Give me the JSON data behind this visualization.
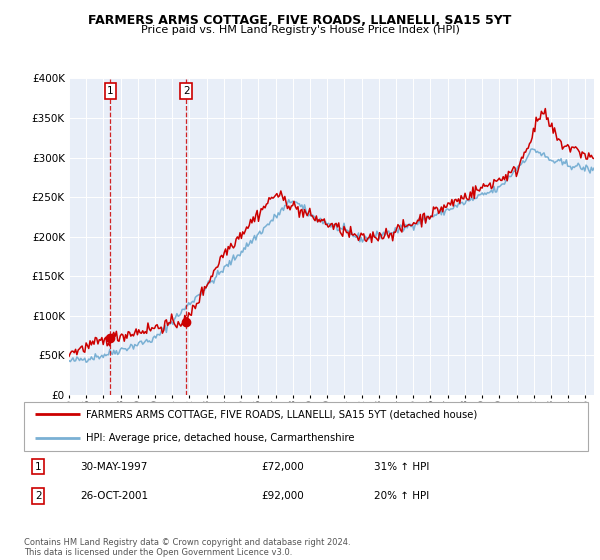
{
  "title": "FARMERS ARMS COTTAGE, FIVE ROADS, LLANELLI, SA15 5YT",
  "subtitle": "Price paid vs. HM Land Registry's House Price Index (HPI)",
  "legend_line1": "FARMERS ARMS COTTAGE, FIVE ROADS, LLANELLI, SA15 5YT (detached house)",
  "legend_line2": "HPI: Average price, detached house, Carmarthenshire",
  "footer": "Contains HM Land Registry data © Crown copyright and database right 2024.\nThis data is licensed under the Open Government Licence v3.0.",
  "sale1_date": "30-MAY-1997",
  "sale1_price": 72000,
  "sale1_hpi_pct": "31% ↑ HPI",
  "sale1_year": 1997.41,
  "sale2_date": "26-OCT-2001",
  "sale2_price": 92000,
  "sale2_hpi_pct": "20% ↑ HPI",
  "sale2_year": 2001.81,
  "red_color": "#cc0000",
  "blue_color": "#7ab0d4",
  "plot_bg": "#e8eef8",
  "ylim": [
    0,
    400000
  ],
  "xlim_start": 1995.0,
  "xlim_end": 2025.5,
  "yticks": [
    0,
    50000,
    100000,
    150000,
    200000,
    250000,
    300000,
    350000,
    400000
  ],
  "xtick_start": 1995,
  "xtick_end": 2026
}
